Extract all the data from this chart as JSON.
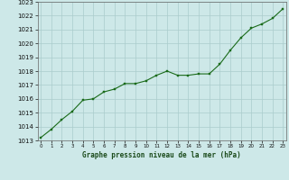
{
  "x": [
    0,
    1,
    2,
    3,
    4,
    5,
    6,
    7,
    8,
    9,
    10,
    11,
    12,
    13,
    14,
    15,
    16,
    17,
    18,
    19,
    20,
    21,
    22,
    23
  ],
  "y": [
    1013.2,
    1013.8,
    1014.5,
    1015.1,
    1015.9,
    1016.0,
    1016.5,
    1016.7,
    1017.1,
    1017.1,
    1017.3,
    1017.7,
    1018.0,
    1017.7,
    1017.7,
    1017.8,
    1017.8,
    1018.5,
    1019.5,
    1020.4,
    1021.1,
    1021.4,
    1021.8,
    1022.5
  ],
  "line_color": "#1a6b1a",
  "marker_color": "#1a6b1a",
  "bg_color": "#cde8e8",
  "grid_color": "#aacccc",
  "xlabel": "Graphe pression niveau de la mer (hPa)",
  "yticks": [
    1013,
    1014,
    1015,
    1016,
    1017,
    1018,
    1019,
    1020,
    1021,
    1022,
    1023
  ],
  "xticks": [
    0,
    1,
    2,
    3,
    4,
    5,
    6,
    7,
    8,
    9,
    10,
    11,
    12,
    13,
    14,
    15,
    16,
    17,
    18,
    19,
    20,
    21,
    22,
    23
  ],
  "ylim": [
    1013,
    1023
  ],
  "xlim": [
    -0.3,
    23.3
  ]
}
